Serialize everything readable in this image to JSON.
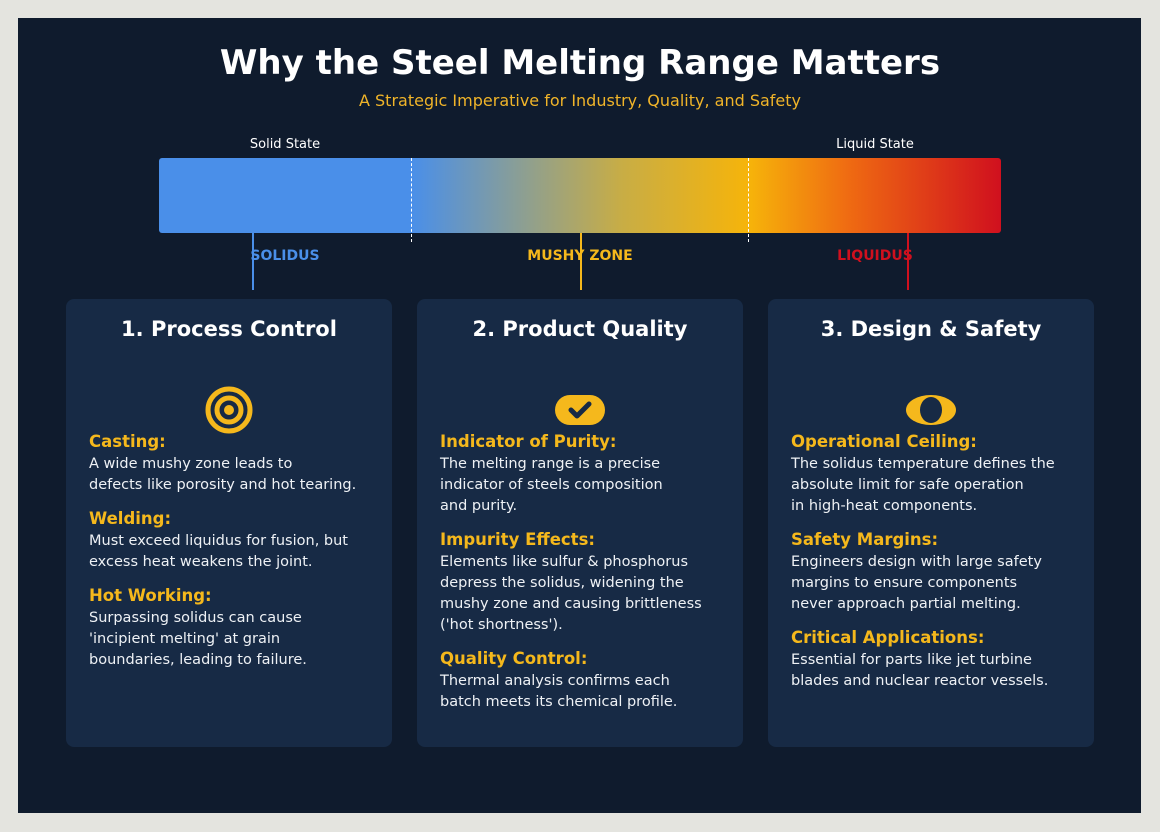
{
  "header": {
    "title": "Why the Steel Melting Range Matters",
    "subtitle": "A Strategic Imperative for Industry, Quality, and Safety"
  },
  "scale": {
    "left_label": "Solid State",
    "right_label": "Liquid State",
    "markers": [
      {
        "label": "SOLIDUS"
      },
      {
        "label": "MUSHY ZONE"
      },
      {
        "label": "LIQUIDUS"
      }
    ]
  },
  "cards": [
    {
      "title": "1. Process Control",
      "sections": [
        {
          "heading": "Casting:",
          "lines": [
            "A wide mushy zone leads to",
            "defects like porosity and hot tearing."
          ]
        },
        {
          "heading": "Welding:",
          "lines": [
            "Must exceed liquidus for fusion, but",
            "excess heat weakens the joint."
          ]
        },
        {
          "heading": "Hot Working:",
          "lines": [
            "Surpassing solidus can cause",
            "'incipient melting' at grain",
            "boundaries, leading to failure."
          ]
        }
      ]
    },
    {
      "title": "2. Product Quality",
      "sections": [
        {
          "heading": "Indicator of Purity:",
          "lines": [
            "The melting range is a precise",
            "indicator of steels composition",
            "and purity."
          ]
        },
        {
          "heading": "Impurity Effects:",
          "lines": [
            "Elements like sulfur & phosphorus",
            "depress the solidus, widening the",
            "mushy zone and causing brittleness",
            "('hot shortness')."
          ]
        },
        {
          "heading": "Quality Control:",
          "lines": [
            "Thermal analysis confirms each",
            "batch meets its chemical profile."
          ]
        }
      ]
    },
    {
      "title": "3. Design & Safety",
      "sections": [
        {
          "heading": "Operational Ceiling:",
          "lines": [
            "The solidus temperature defines the",
            "absolute limit for safe operation",
            "in high-heat components."
          ]
        },
        {
          "heading": "Safety Margins:",
          "lines": [
            "Engineers design with large safety",
            "margins to ensure components",
            "never approach partial melting."
          ]
        },
        {
          "heading": "Critical Applications:",
          "lines": [
            "Essential for parts like jet turbine",
            "blades and nuclear reactor vessels."
          ]
        }
      ]
    }
  ]
}
